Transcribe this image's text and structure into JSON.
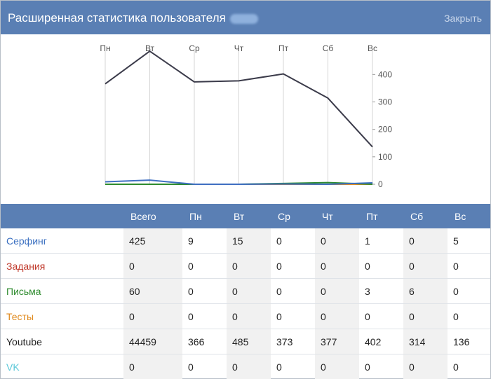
{
  "dialog": {
    "title": "Расширенная статистика пользователя",
    "close_label": "Закрыть"
  },
  "chart_data": {
    "type": "line",
    "categories": [
      "Пн",
      "Вт",
      "Ср",
      "Чт",
      "Пт",
      "Сб",
      "Вс"
    ],
    "ylim": [
      0,
      480
    ],
    "yticks": [
      0,
      100,
      200,
      300,
      400
    ],
    "grid": "vertical",
    "series": [
      {
        "values": [
          366,
          485,
          373,
          377,
          402,
          314,
          136
        ],
        "color": "#3b3b4a"
      },
      {
        "values": [
          9,
          15,
          0,
          0,
          1,
          0,
          5
        ],
        "color": "#3f6fc2"
      },
      {
        "values": [
          0,
          0,
          0,
          0,
          3,
          6,
          0
        ],
        "color": "#2e8b2e"
      },
      {
        "values": [
          0,
          0,
          0,
          0,
          0,
          0,
          0
        ],
        "color": "#f0901a"
      },
      {
        "values": [
          0,
          0,
          0,
          0,
          0,
          0,
          0
        ],
        "color": "#c8402a"
      },
      {
        "values": [
          0,
          0,
          0,
          0,
          0,
          0,
          0
        ],
        "color": "#5bc8d8"
      }
    ]
  },
  "table": {
    "headers": [
      "",
      "Всего",
      "Пн",
      "Вт",
      "Ср",
      "Чт",
      "Пт",
      "Сб",
      "Вс"
    ],
    "rows": [
      {
        "label": "Серфинг",
        "color": "#3a6fc0",
        "values": [
          "425",
          "9",
          "15",
          "0",
          "0",
          "1",
          "0",
          "5"
        ]
      },
      {
        "label": "Задания",
        "color": "#c0392b",
        "values": [
          "0",
          "0",
          "0",
          "0",
          "0",
          "0",
          "0",
          "0"
        ]
      },
      {
        "label": "Письма",
        "color": "#2e8b2e",
        "values": [
          "60",
          "0",
          "0",
          "0",
          "0",
          "3",
          "6",
          "0"
        ]
      },
      {
        "label": "Тесты",
        "color": "#e08a1e",
        "values": [
          "0",
          "0",
          "0",
          "0",
          "0",
          "0",
          "0",
          "0"
        ]
      },
      {
        "label": "Youtube",
        "color": "#222222",
        "values": [
          "44459",
          "366",
          "485",
          "373",
          "377",
          "402",
          "314",
          "136"
        ]
      },
      {
        "label": "VK",
        "color": "#5bc8d8",
        "values": [
          "0",
          "0",
          "0",
          "0",
          "0",
          "0",
          "0",
          "0"
        ]
      }
    ]
  }
}
